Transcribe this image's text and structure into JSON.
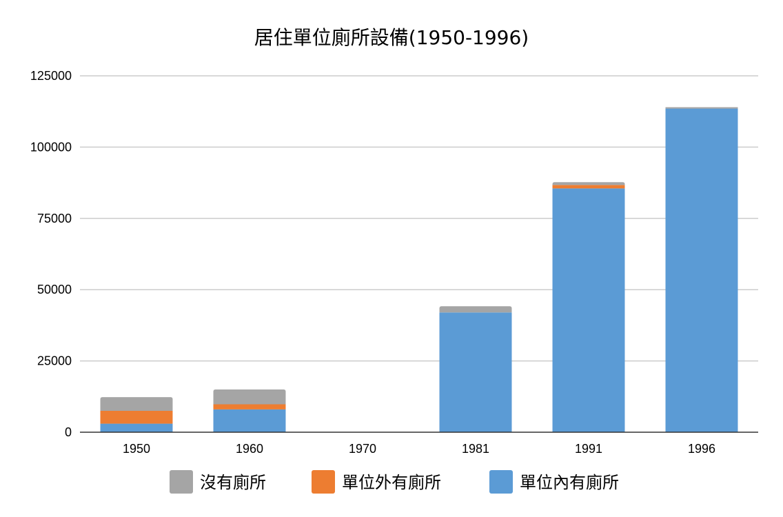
{
  "chart_data": {
    "type": "bar",
    "stacked": true,
    "title": "居住單位廁所設備(1950-1996)",
    "xlabel": "",
    "ylabel": "",
    "categories": [
      "1950",
      "1960",
      "1970",
      "1981",
      "1991",
      "1996"
    ],
    "ylim": [
      0,
      125000
    ],
    "yticks": [
      "0",
      "25000",
      "50000",
      "75000",
      "100000",
      "125000"
    ],
    "grid": true,
    "legend_position": "bottom",
    "series": [
      {
        "name": "單位內有廁所",
        "color": "#5b9bd5",
        "values": [
          3000,
          8000,
          0,
          42000,
          85500,
          113500
        ]
      },
      {
        "name": "單位外有廁所",
        "color": "#ed7d31",
        "values": [
          4500,
          1800,
          0,
          0,
          1200,
          0
        ]
      },
      {
        "name": "沒有廁所",
        "color": "#a5a5a5",
        "values": [
          4800,
          5200,
          0,
          2200,
          1000,
          500
        ]
      }
    ],
    "legend_order": [
      "沒有廁所",
      "單位外有廁所",
      "單位內有廁所"
    ]
  }
}
